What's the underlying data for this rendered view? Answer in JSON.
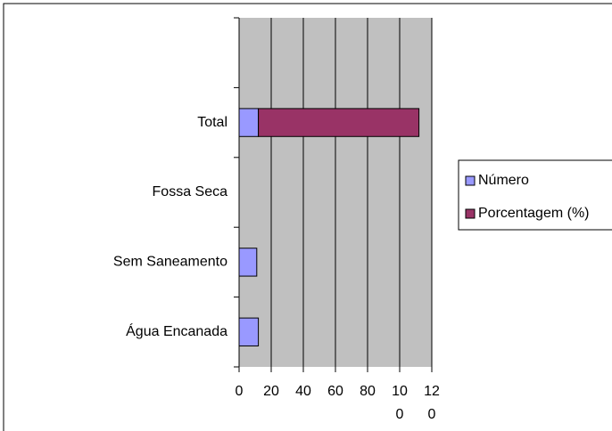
{
  "chart_data": {
    "type": "bar",
    "orientation": "horizontal",
    "stacked": true,
    "categories": [
      "Água Encanada",
      "Sem Saneamento",
      "Fossa Seca",
      "Total",
      null
    ],
    "series": [
      {
        "name": "Número",
        "color": "#9999ff",
        "values": [
          12,
          11,
          0,
          12,
          0
        ]
      },
      {
        "name": "Porcentagem (%)",
        "color": "#993366",
        "values": [
          0,
          0,
          0,
          100,
          0
        ]
      }
    ],
    "xlim": [
      0,
      120
    ],
    "xticks": [
      0,
      20,
      40,
      60,
      80,
      100,
      120
    ],
    "grid": true,
    "legend": "right"
  }
}
